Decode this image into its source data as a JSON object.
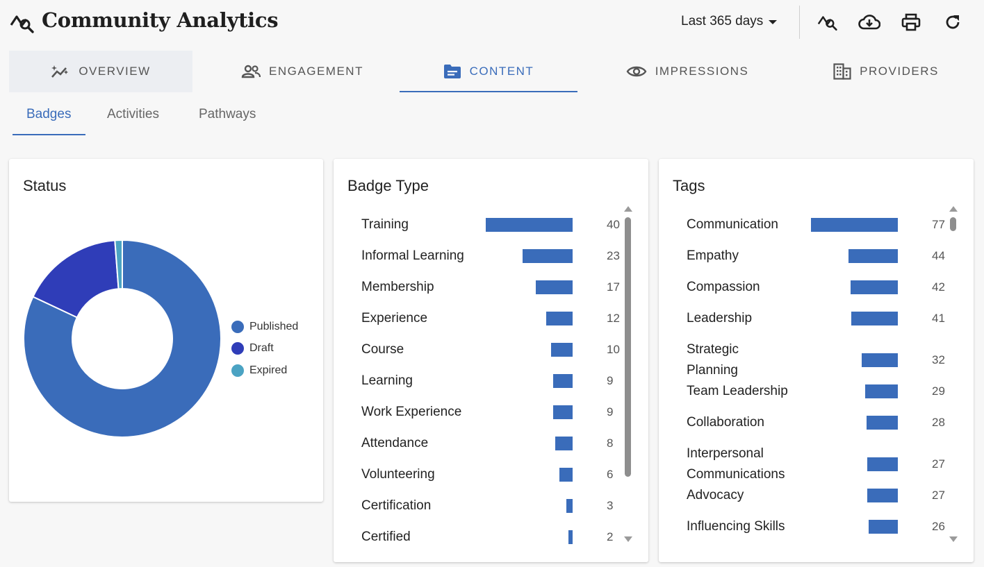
{
  "app": {
    "title": "Community Analytics"
  },
  "header": {
    "range_label": "Last 365 days"
  },
  "tabs": [
    {
      "label": "OVERVIEW",
      "icon": "sparkle-chart-icon"
    },
    {
      "label": "ENGAGEMENT",
      "icon": "people-icon"
    },
    {
      "label": "CONTENT",
      "icon": "folder-icon"
    },
    {
      "label": "IMPRESSIONS",
      "icon": "eye-icon"
    },
    {
      "label": "PROVIDERS",
      "icon": "building-icon"
    }
  ],
  "subtabs": [
    "Badges",
    "Activities",
    "Pathways"
  ],
  "colors": {
    "accent": "#3a6cba",
    "published": "#3a6cba",
    "draft": "#2f3db8",
    "expired": "#4ba3c3"
  },
  "status": {
    "title": "Status",
    "chart_data": {
      "type": "pie",
      "donut": true,
      "legend": "right",
      "slices": [
        {
          "label": "Published",
          "value": 82
        },
        {
          "label": "Draft",
          "value": 16.8
        },
        {
          "label": "Expired",
          "value": 1.2
        }
      ]
    }
  },
  "badge_type": {
    "title": "Badge Type",
    "max": 40,
    "rows": [
      {
        "label": "Training",
        "value": 40
      },
      {
        "label": "Informal Learning",
        "value": 23
      },
      {
        "label": "Membership",
        "value": 17
      },
      {
        "label": "Experience",
        "value": 12
      },
      {
        "label": "Course",
        "value": 10
      },
      {
        "label": "Learning",
        "value": 9
      },
      {
        "label": "Work Experience",
        "value": 9
      },
      {
        "label": "Attendance",
        "value": 8
      },
      {
        "label": "Volunteering",
        "value": 6
      },
      {
        "label": "Certification",
        "value": 3
      },
      {
        "label": "Certified",
        "value": 2
      }
    ]
  },
  "tags": {
    "title": "Tags",
    "max": 77,
    "rows": [
      {
        "label": "Communication",
        "value": 77
      },
      {
        "label": "Empathy",
        "value": 44
      },
      {
        "label": "Compassion",
        "value": 42
      },
      {
        "label": "Leadership",
        "value": 41
      },
      {
        "label": "Strategic Planning",
        "value": 32
      },
      {
        "label": "Team Leadership",
        "value": 29
      },
      {
        "label": "Collaboration",
        "value": 28
      },
      {
        "label": "Interpersonal Communications",
        "value": 27
      },
      {
        "label": "Advocacy",
        "value": 27
      },
      {
        "label": "Influencing Skills",
        "value": 26
      }
    ]
  }
}
